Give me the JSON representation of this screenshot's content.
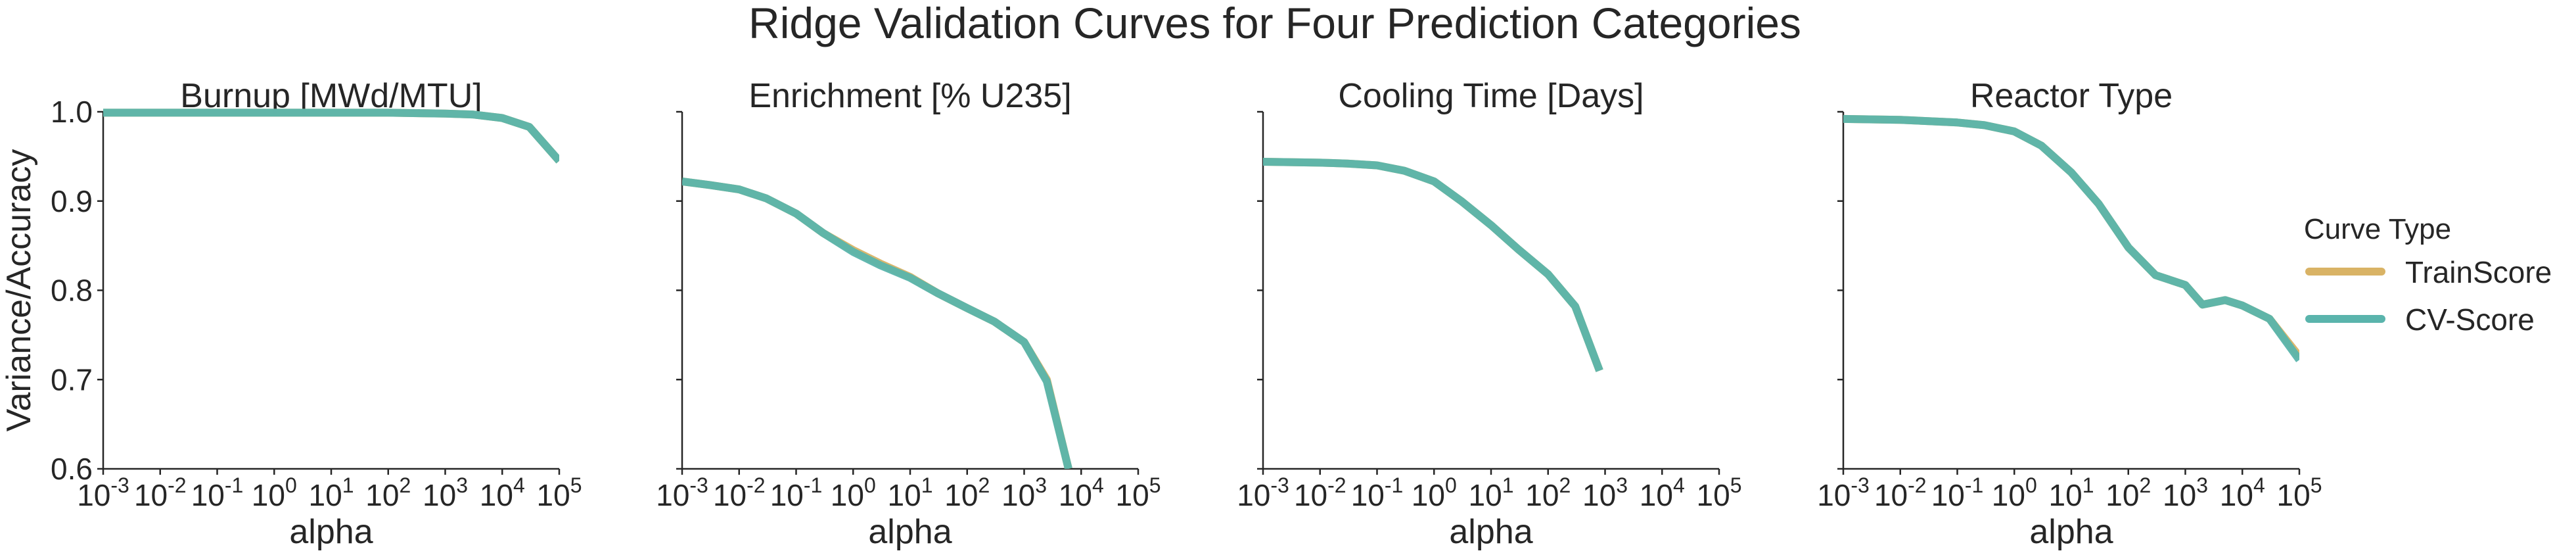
{
  "figure": {
    "suptitle": "Ridge Validation Curves for Four Prediction Categories",
    "legend": {
      "title": "Curve Type",
      "entries": [
        {
          "label": "TrainScore",
          "color": "#d9b365"
        },
        {
          "label": "CV-Score",
          "color": "#5ab4ac"
        }
      ]
    }
  },
  "chart_data": [
    {
      "type": "line",
      "title": "Burnup [MWd/MTU]",
      "xlabel": "alpha",
      "ylabel": "Variance/Accuracy",
      "xscale": "log",
      "xlim": [
        0.001,
        100000
      ],
      "ylim": [
        0.6,
        1.0
      ],
      "xticks": [
        {
          "base": "10",
          "exp": "-3"
        },
        {
          "base": "10",
          "exp": "-2"
        },
        {
          "base": "10",
          "exp": "-1"
        },
        {
          "base": "10",
          "exp": "0"
        },
        {
          "base": "10",
          "exp": "1"
        },
        {
          "base": "10",
          "exp": "2"
        },
        {
          "base": "10",
          "exp": "3"
        },
        {
          "base": "10",
          "exp": "4"
        },
        {
          "base": "10",
          "exp": "5"
        }
      ],
      "yticks": [
        "0.6",
        "0.7",
        "0.8",
        "0.9",
        "1.0"
      ],
      "x": [
        0.001,
        0.01,
        0.1,
        1,
        10,
        100,
        1000,
        3000,
        10000,
        30000,
        100000
      ],
      "series": [
        {
          "name": "TrainScore",
          "color": "#d9b365",
          "values": [
            0.999,
            0.999,
            0.999,
            0.999,
            0.999,
            0.999,
            0.998,
            0.997,
            0.993,
            0.983,
            0.945
          ]
        },
        {
          "name": "CV-Score",
          "color": "#5ab4ac",
          "values": [
            0.999,
            0.999,
            0.999,
            0.999,
            0.999,
            0.999,
            0.998,
            0.997,
            0.993,
            0.983,
            0.945
          ]
        }
      ]
    },
    {
      "type": "line",
      "title": "Enrichment [% U235]",
      "xlabel": "alpha",
      "ylabel": "",
      "xscale": "log",
      "xlim": [
        0.001,
        100000
      ],
      "ylim": [
        0.6,
        1.0
      ],
      "xticks": [
        {
          "base": "10",
          "exp": "-3"
        },
        {
          "base": "10",
          "exp": "-2"
        },
        {
          "base": "10",
          "exp": "-1"
        },
        {
          "base": "10",
          "exp": "0"
        },
        {
          "base": "10",
          "exp": "1"
        },
        {
          "base": "10",
          "exp": "2"
        },
        {
          "base": "10",
          "exp": "3"
        },
        {
          "base": "10",
          "exp": "4"
        },
        {
          "base": "10",
          "exp": "5"
        }
      ],
      "yticks": [],
      "x": [
        0.001,
        0.003,
        0.01,
        0.03,
        0.1,
        0.3,
        1,
        3,
        10,
        30,
        100,
        300,
        1000,
        2500,
        6000
      ],
      "series": [
        {
          "name": "TrainScore",
          "color": "#d9b365",
          "values": [
            0.922,
            0.918,
            0.913,
            0.903,
            0.886,
            0.864,
            0.845,
            0.83,
            0.815,
            0.797,
            0.78,
            0.765,
            0.742,
            0.7,
            0.6
          ]
        },
        {
          "name": "CV-Score",
          "color": "#5ab4ac",
          "values": [
            0.922,
            0.918,
            0.913,
            0.903,
            0.886,
            0.864,
            0.843,
            0.828,
            0.814,
            0.797,
            0.78,
            0.765,
            0.742,
            0.698,
            0.6
          ]
        }
      ]
    },
    {
      "type": "line",
      "title": "Cooling Time [Days]",
      "xlabel": "alpha",
      "ylabel": "",
      "xscale": "log",
      "xlim": [
        0.001,
        100000
      ],
      "ylim": [
        0.6,
        1.0
      ],
      "xticks": [
        {
          "base": "10",
          "exp": "-3"
        },
        {
          "base": "10",
          "exp": "-2"
        },
        {
          "base": "10",
          "exp": "-1"
        },
        {
          "base": "10",
          "exp": "0"
        },
        {
          "base": "10",
          "exp": "1"
        },
        {
          "base": "10",
          "exp": "2"
        },
        {
          "base": "10",
          "exp": "3"
        },
        {
          "base": "10",
          "exp": "4"
        },
        {
          "base": "10",
          "exp": "5"
        }
      ],
      "yticks": [],
      "x": [
        0.001,
        0.01,
        0.03,
        0.1,
        0.3,
        1,
        3,
        10,
        30,
        100,
        300,
        800
      ],
      "series": [
        {
          "name": "TrainScore",
          "color": "#d9b365",
          "values": [
            0.944,
            0.943,
            0.942,
            0.94,
            0.934,
            0.922,
            0.9,
            0.873,
            0.846,
            0.818,
            0.782,
            0.71
          ]
        },
        {
          "name": "CV-Score",
          "color": "#5ab4ac",
          "values": [
            0.944,
            0.943,
            0.942,
            0.94,
            0.934,
            0.922,
            0.9,
            0.873,
            0.846,
            0.818,
            0.782,
            0.71
          ]
        }
      ]
    },
    {
      "type": "line",
      "title": "Reactor Type",
      "xlabel": "alpha",
      "ylabel": "",
      "xscale": "log",
      "xlim": [
        0.001,
        100000
      ],
      "ylim": [
        0.6,
        1.0
      ],
      "xticks": [
        {
          "base": "10",
          "exp": "-3"
        },
        {
          "base": "10",
          "exp": "-2"
        },
        {
          "base": "10",
          "exp": "-1"
        },
        {
          "base": "10",
          "exp": "0"
        },
        {
          "base": "10",
          "exp": "1"
        },
        {
          "base": "10",
          "exp": "2"
        },
        {
          "base": "10",
          "exp": "3"
        },
        {
          "base": "10",
          "exp": "4"
        },
        {
          "base": "10",
          "exp": "5"
        }
      ],
      "yticks": [],
      "x": [
        0.001,
        0.01,
        0.1,
        0.3,
        1,
        3,
        10,
        30,
        100,
        300,
        1000,
        2000,
        5000,
        10000,
        30000,
        100000
      ],
      "series": [
        {
          "name": "TrainScore",
          "color": "#d9b365",
          "values": [
            0.992,
            0.991,
            0.988,
            0.985,
            0.978,
            0.962,
            0.932,
            0.897,
            0.848,
            0.817,
            0.806,
            0.784,
            0.789,
            0.783,
            0.768,
            0.726
          ]
        },
        {
          "name": "CV-Score",
          "color": "#5ab4ac",
          "values": [
            0.992,
            0.991,
            0.988,
            0.985,
            0.978,
            0.962,
            0.932,
            0.897,
            0.848,
            0.817,
            0.806,
            0.784,
            0.789,
            0.783,
            0.768,
            0.722
          ]
        }
      ]
    }
  ]
}
